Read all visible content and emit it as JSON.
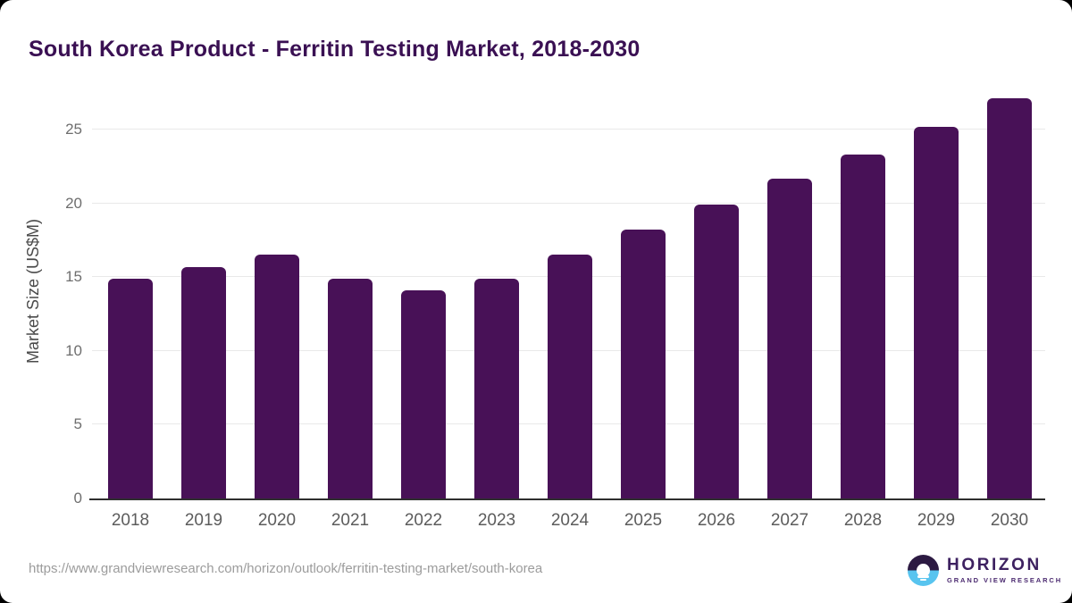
{
  "title": "South Korea Product - Ferritin Testing Market, 2018-2030",
  "chart_data": {
    "type": "bar",
    "title": "South Korea Product - Ferritin Testing Market, 2018-2030",
    "categories": [
      "2018",
      "2019",
      "2020",
      "2021",
      "2022",
      "2023",
      "2024",
      "2025",
      "2026",
      "2027",
      "2028",
      "2029",
      "2030"
    ],
    "values": [
      14.9,
      15.7,
      16.5,
      14.9,
      14.1,
      14.9,
      16.5,
      18.2,
      19.9,
      21.7,
      23.3,
      25.2,
      27.1
    ],
    "xlabel": "",
    "ylabel": "Market Size (US$M)",
    "ylim": [
      0,
      25
    ],
    "yticks": [
      0,
      5,
      10,
      15,
      20,
      25
    ],
    "grid": true,
    "legend_position": "none",
    "bar_color": "#481157"
  },
  "footer": {
    "source_url": "https://www.grandviewresearch.com/horizon/outlook/ferritin-testing-market/south-korea",
    "logo": {
      "icon": "horizon-sunset-circle-icon",
      "name": "HORIZON",
      "subtitle": "GRAND VIEW RESEARCH",
      "icon_top_color": "#2c1a42",
      "icon_bottom_color": "#58c4ef"
    }
  },
  "colors": {
    "title": "#3a1053",
    "bar": "#481157",
    "tick_label": "#6e6e6e",
    "year_label": "#5c5c5c",
    "axis_line": "#2f2f2f",
    "gridline": "#e9e9e9",
    "url": "#9c9c9c",
    "background": "#ffffff",
    "corner_border": "#000000"
  }
}
